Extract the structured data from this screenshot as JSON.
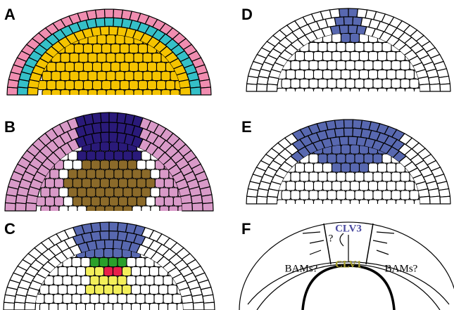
{
  "panels": [
    {
      "label": "A"
    },
    {
      "label": "B"
    },
    {
      "label": "C"
    },
    {
      "label": "D"
    },
    {
      "label": "E"
    },
    {
      "label": "F"
    }
  ],
  "diagram_f": {
    "clv3": "CLV3",
    "question": "?",
    "clv1": "CLV1",
    "bams_left": "BAMs?",
    "bams_right": "BAMs?"
  }
}
